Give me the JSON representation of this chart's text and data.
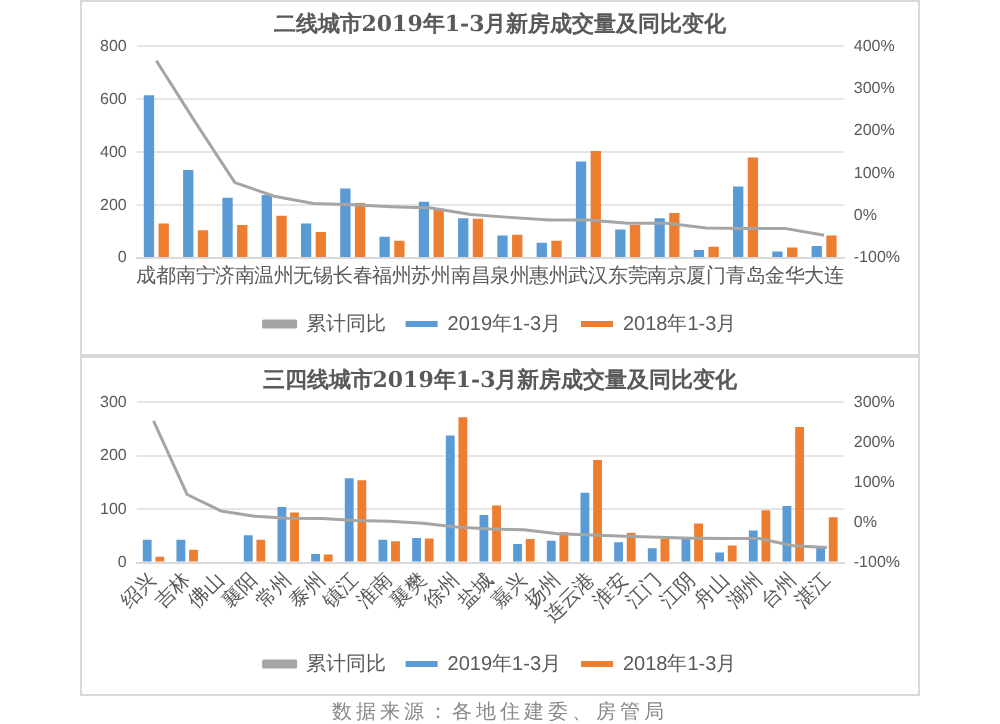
{
  "chart_data": [
    {
      "type": "bar",
      "title": "二线城市2019年1-3月新房成交量及同比变化",
      "categories": [
        "成都",
        "南宁",
        "济南",
        "温州",
        "无锡",
        "长春",
        "福州",
        "苏州",
        "南昌",
        "泉州",
        "惠州",
        "武汉",
        "东莞",
        "南京",
        "厦门",
        "青岛",
        "金华",
        "大连"
      ],
      "series": [
        {
          "name": "2019年1-3月",
          "color": "#5b9bd5",
          "values": [
            615,
            333,
            228,
            238,
            130,
            263,
            80,
            213,
            150,
            85,
            58,
            365,
            108,
            150,
            30,
            270,
            25,
            45
          ]
        },
        {
          "name": "2018年1-3月",
          "color": "#ed7d31",
          "values": [
            130,
            105,
            125,
            160,
            98,
            208,
            65,
            183,
            148,
            88,
            65,
            405,
            125,
            170,
            43,
            380,
            40,
            85
          ]
        },
        {
          "name": "累计同比",
          "type": "line",
          "axis": "y2",
          "color": "#a5a5a5",
          "values": [
            366,
            220,
            78,
            46,
            29,
            26,
            21,
            18,
            3,
            -4,
            -10,
            -10,
            -18,
            -18,
            -29,
            -30,
            -30,
            -46
          ]
        }
      ],
      "ylim": [
        0,
        800
      ],
      "yticks": [
        0,
        200,
        400,
        600,
        800
      ],
      "y2lim": [
        -100,
        400
      ],
      "y2ticks": [
        {
          "value": -100,
          "label": "-100%"
        },
        {
          "value": 0,
          "label": "0%"
        },
        {
          "value": 100,
          "label": "100%"
        },
        {
          "value": 200,
          "label": "200%"
        },
        {
          "value": 300,
          "label": "300%"
        },
        {
          "value": 400,
          "label": "400%"
        }
      ],
      "grid": "y",
      "legend": "bottom",
      "marker": "none"
    },
    {
      "type": "bar",
      "title": "三四线城市2019年1-3月新房成交量及同比变化",
      "categories": [
        "绍兴",
        "吉林",
        "佛山",
        "襄阳",
        "常州",
        "泰州",
        "镇江",
        "淮南",
        "襄樊",
        "徐州",
        "盐城",
        "嘉兴",
        "扬州",
        "连云港",
        "淮安",
        "江门",
        "江阴",
        "舟山",
        "湖州",
        "台州",
        "湛江"
      ],
      "series": [
        {
          "name": "2019年1-3月",
          "color": "#5b9bd5",
          "values": [
            43,
            43,
            null,
            51,
            104,
            16,
            158,
            43,
            46,
            238,
            89,
            35,
            41,
            131,
            38,
            27,
            46,
            19,
            60,
            106,
            29
          ]
        },
        {
          "name": "2018年1-3月",
          "color": "#ed7d31",
          "values": [
            11,
            24,
            null,
            43,
            94,
            15,
            154,
            40,
            45,
            272,
            107,
            44,
            57,
            192,
            56,
            44,
            73,
            32,
            98,
            254,
            85
          ]
        },
        {
          "name": "累计同比",
          "type": "line",
          "axis": "y2",
          "color": "#a5a5a5",
          "values": [
            254,
            70,
            29,
            16,
            11,
            10,
            5,
            3,
            -2,
            -11,
            -16,
            -18,
            -28,
            -31,
            -34,
            -37,
            -39,
            -40,
            -40,
            -58,
            -62
          ]
        }
      ],
      "ylim": [
        0,
        300
      ],
      "yticks": [
        0,
        100,
        200,
        300
      ],
      "y2lim": [
        -100,
        300
      ],
      "y2ticks": [
        {
          "value": -100,
          "label": "-100%"
        },
        {
          "value": 0,
          "label": "0%"
        },
        {
          "value": 100,
          "label": "100%"
        },
        {
          "value": 200,
          "label": "200%"
        },
        {
          "value": 300,
          "label": "300%"
        }
      ],
      "grid": "y",
      "legend": "bottom",
      "marker": "none",
      "annotations": [
        "数据来源：各地住建委、房管局"
      ]
    }
  ]
}
